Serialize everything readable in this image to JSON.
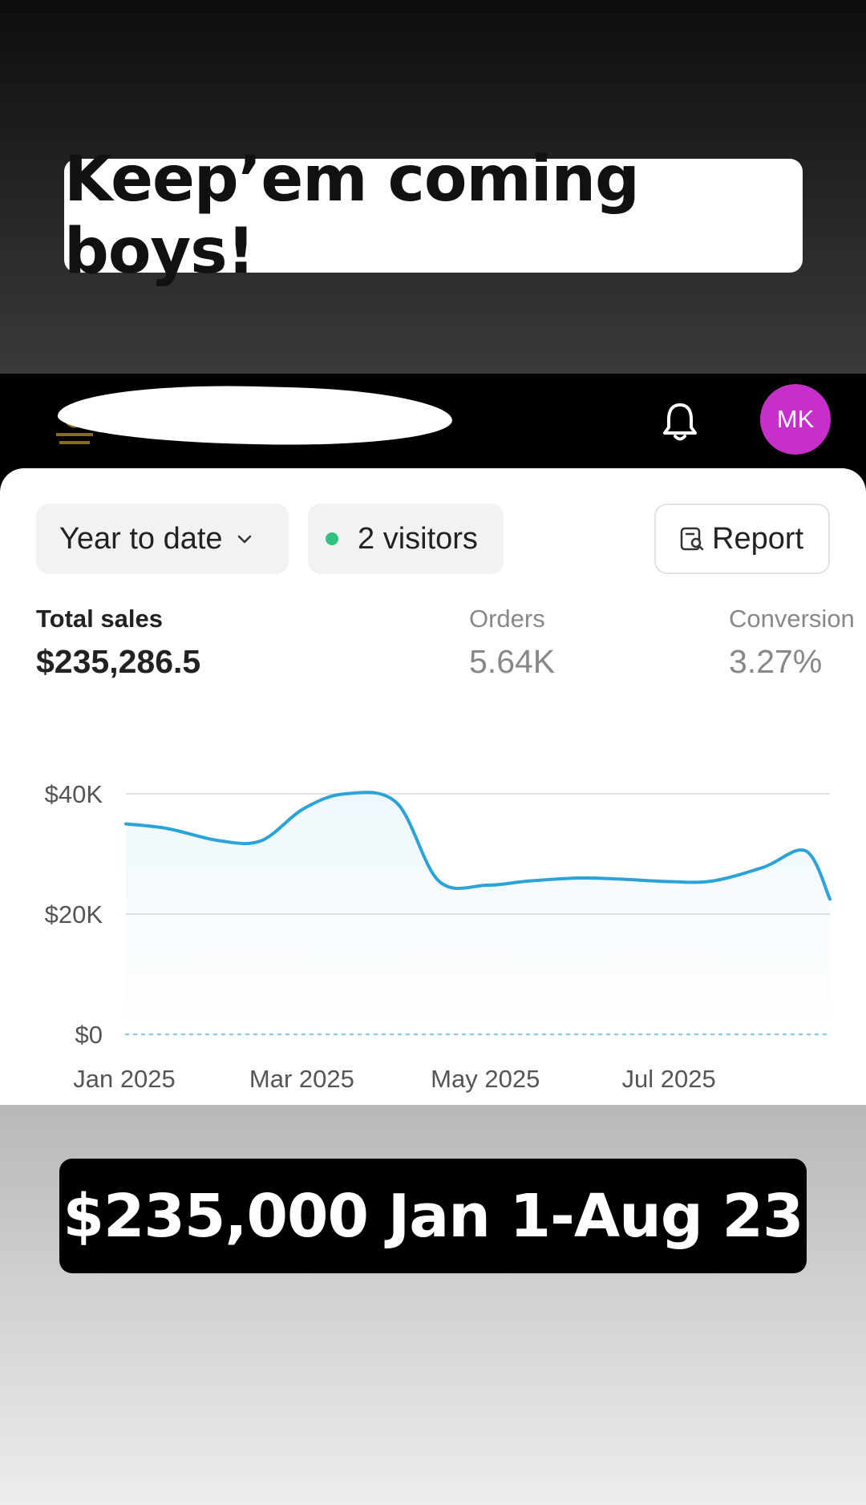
{
  "story": {
    "caption_top": "Keep’em coming boys!",
    "caption_bottom": "$235,000 Jan 1-Aug 23"
  },
  "header": {
    "avatar_initials": "MK",
    "avatar_color": "#c62fc9"
  },
  "toolbar": {
    "date_range": "Year to date",
    "visitors_label": "2 visitors",
    "visitors_dot_color": "#2ec27e",
    "report_label": "Report"
  },
  "metrics": [
    {
      "label": "Total sales",
      "value": "$235,286.5"
    },
    {
      "label": "Orders",
      "value": "5.64K"
    },
    {
      "label": "Conversion",
      "value": "3.27%"
    }
  ],
  "chart_data": {
    "type": "line",
    "x": [
      "2025-01-01",
      "2025-01-15",
      "2025-02-01",
      "2025-02-15",
      "2025-03-01",
      "2025-03-15",
      "2025-04-01",
      "2025-04-15",
      "2025-05-01",
      "2025-05-15",
      "2025-06-01",
      "2025-06-15",
      "2025-07-01",
      "2025-07-15",
      "2025-08-01",
      "2025-08-15",
      "2025-08-23"
    ],
    "series": [
      {
        "values": [
          35000,
          34200,
          32200,
          32200,
          37500,
          40000,
          38500,
          25500,
          24800,
          25500,
          26000,
          25800,
          25400,
          25500,
          27800,
          30500,
          22500
        ]
      }
    ],
    "x_tick_labels": [
      "Jan 2025",
      "Mar 2025",
      "May 2025",
      "Jul 2025"
    ],
    "y_tick_labels": [
      "$0",
      "$20K",
      "$40K"
    ],
    "ylim": [
      0,
      40000
    ],
    "color": "#2aa3d8",
    "grid": true
  }
}
